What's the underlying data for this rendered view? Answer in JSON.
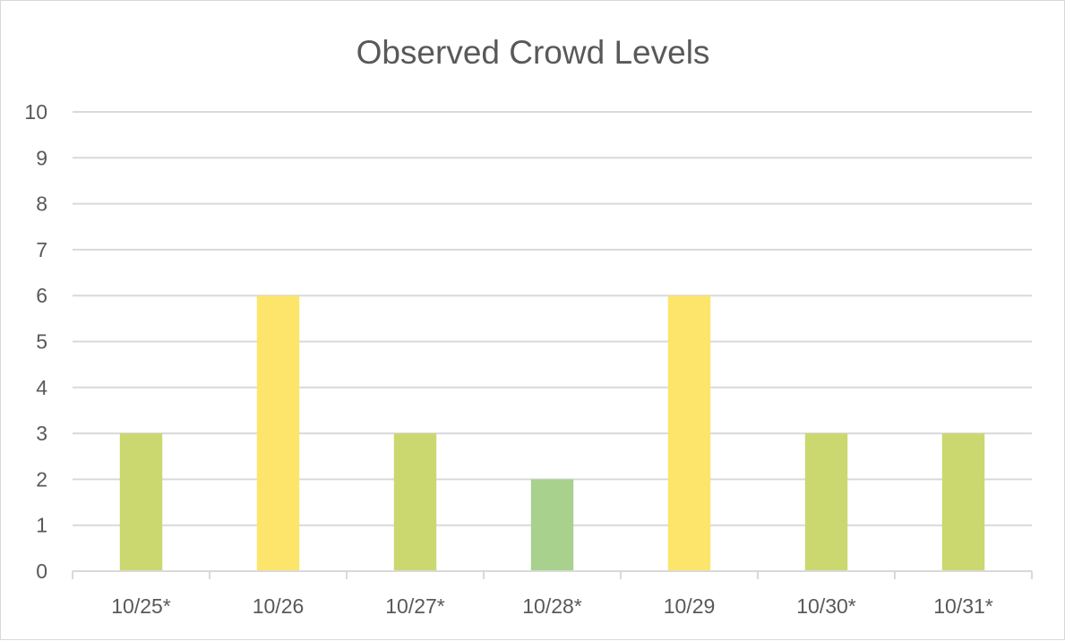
{
  "chart_data": {
    "type": "bar",
    "title": "Observed Crowd Levels",
    "xlabel": "",
    "ylabel": "",
    "categories": [
      "10/25*",
      "10/26",
      "10/27*",
      "10/28*",
      "10/29",
      "10/30*",
      "10/31*"
    ],
    "values": [
      3,
      6,
      3,
      2,
      6,
      3,
      3
    ],
    "bar_colors": [
      "#cbd86f",
      "#fde56c",
      "#cbd86f",
      "#a8d18d",
      "#fde56c",
      "#cbd86f",
      "#cbd86f"
    ],
    "ylim": [
      0,
      10
    ],
    "yticks": [
      "0",
      "1",
      "2",
      "3",
      "4",
      "5",
      "6",
      "7",
      "8",
      "9",
      "10"
    ],
    "grid": true,
    "legend": "none"
  }
}
